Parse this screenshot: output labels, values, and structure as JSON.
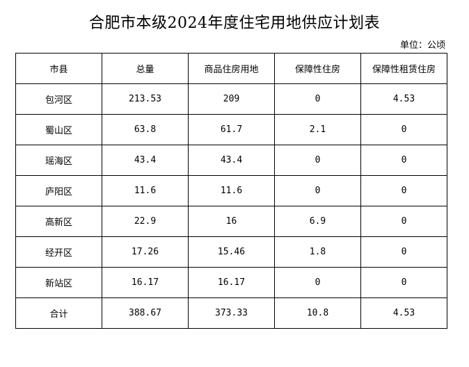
{
  "document": {
    "title": "合肥市本级2024年度住宅用地供应计划表",
    "unit": "单位：公顷"
  },
  "table": {
    "headers": [
      "市县",
      "总量",
      "商品住房用地",
      "保障性住房",
      "保障性租赁住房"
    ],
    "rows": [
      [
        "包河区",
        "213.53",
        "209",
        "0",
        "4.53"
      ],
      [
        "蜀山区",
        "63.8",
        "61.7",
        "2.1",
        "0"
      ],
      [
        "瑶海区",
        "43.4",
        "43.4",
        "0",
        "0"
      ],
      [
        "庐阳区",
        "11.6",
        "11.6",
        "0",
        "0"
      ],
      [
        "高新区",
        "22.9",
        "16",
        "6.9",
        "0"
      ],
      [
        "经开区",
        "17.26",
        "15.46",
        "1.8",
        "0"
      ],
      [
        "新站区",
        "16.17",
        "16.17",
        "0",
        "0"
      ],
      [
        "合计",
        "388.67",
        "373.33",
        "10.8",
        "4.53"
      ]
    ]
  }
}
